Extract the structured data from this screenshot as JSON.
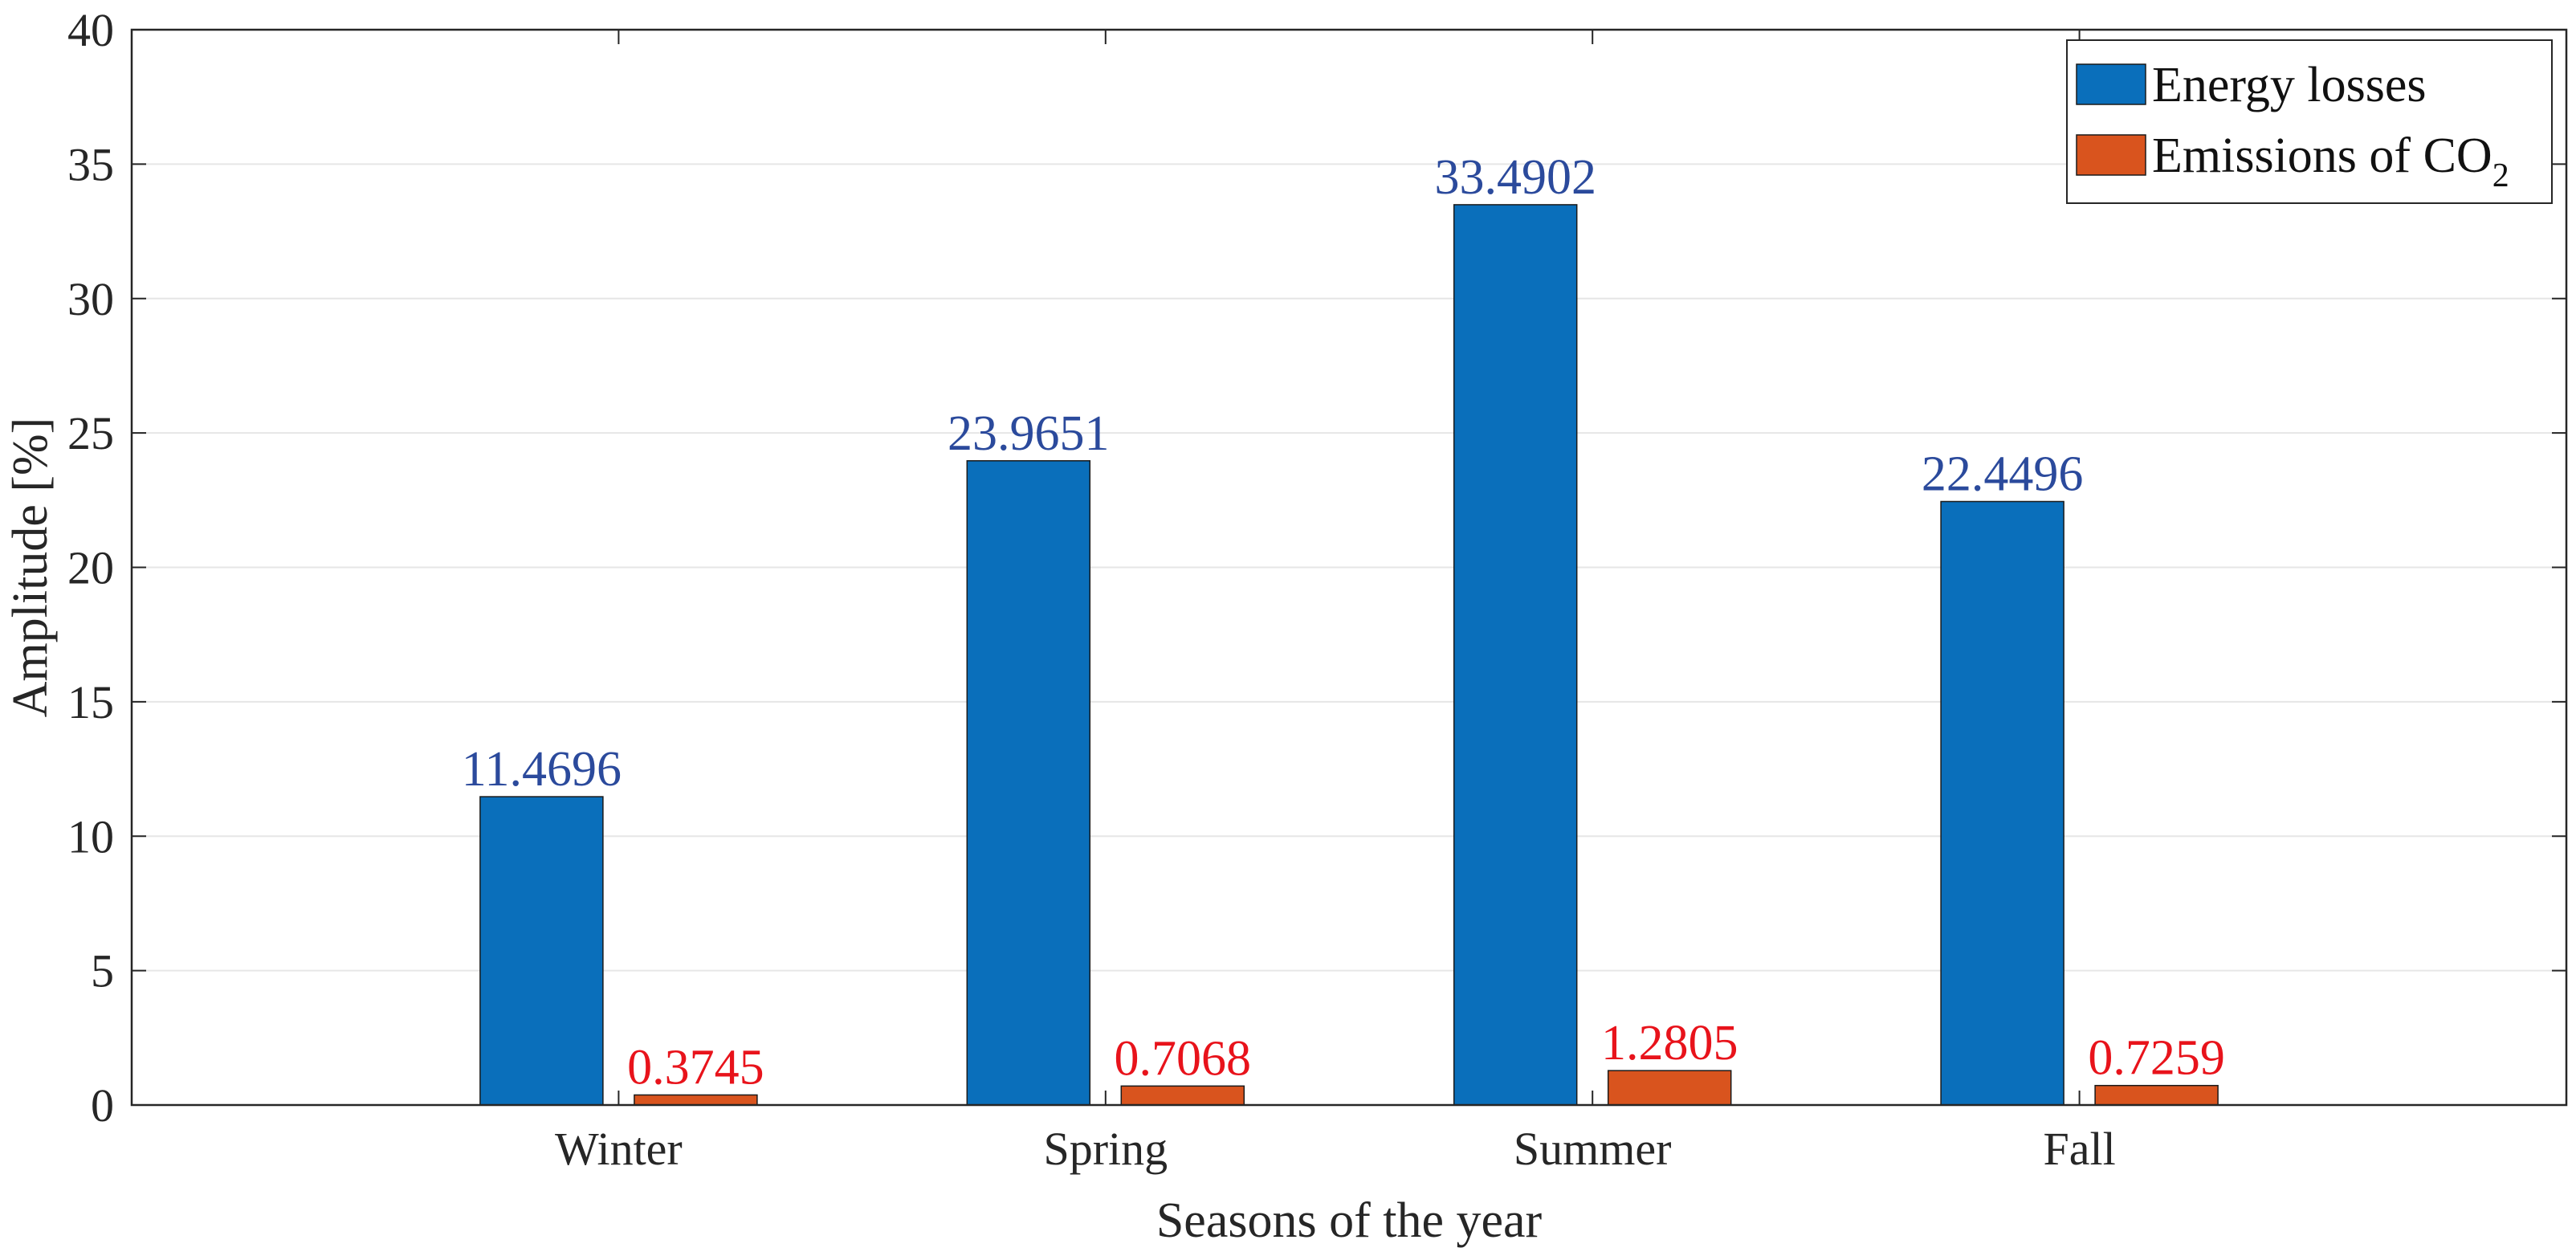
{
  "chart_data": {
    "type": "bar",
    "title": "",
    "xlabel": "Seasons of the year",
    "ylabel": "Amplitude [%]",
    "ylim": [
      0,
      40
    ],
    "yticks": [
      0,
      5,
      10,
      15,
      20,
      25,
      30,
      35,
      40
    ],
    "grid": "horizontal",
    "legend_position": "top-right",
    "categories": [
      "Winter",
      "Spring",
      "Summer",
      "Fall"
    ],
    "series": [
      {
        "name": "Energy losses",
        "color": "#0A6FBB",
        "label_color": "#2B4A9C",
        "values": [
          11.4696,
          23.9651,
          33.4902,
          22.4496
        ],
        "labels": [
          "11.4696",
          "23.9651",
          "33.4902",
          "22.4496"
        ]
      },
      {
        "name": "Emissions of CO",
        "name_subscript": "2",
        "color": "#D9541E",
        "label_color": "#E8131B",
        "values": [
          0.3745,
          0.7068,
          1.2805,
          0.7259
        ],
        "labels": [
          "0.3745",
          "0.7068",
          "1.2805",
          "0.7259"
        ]
      }
    ]
  }
}
